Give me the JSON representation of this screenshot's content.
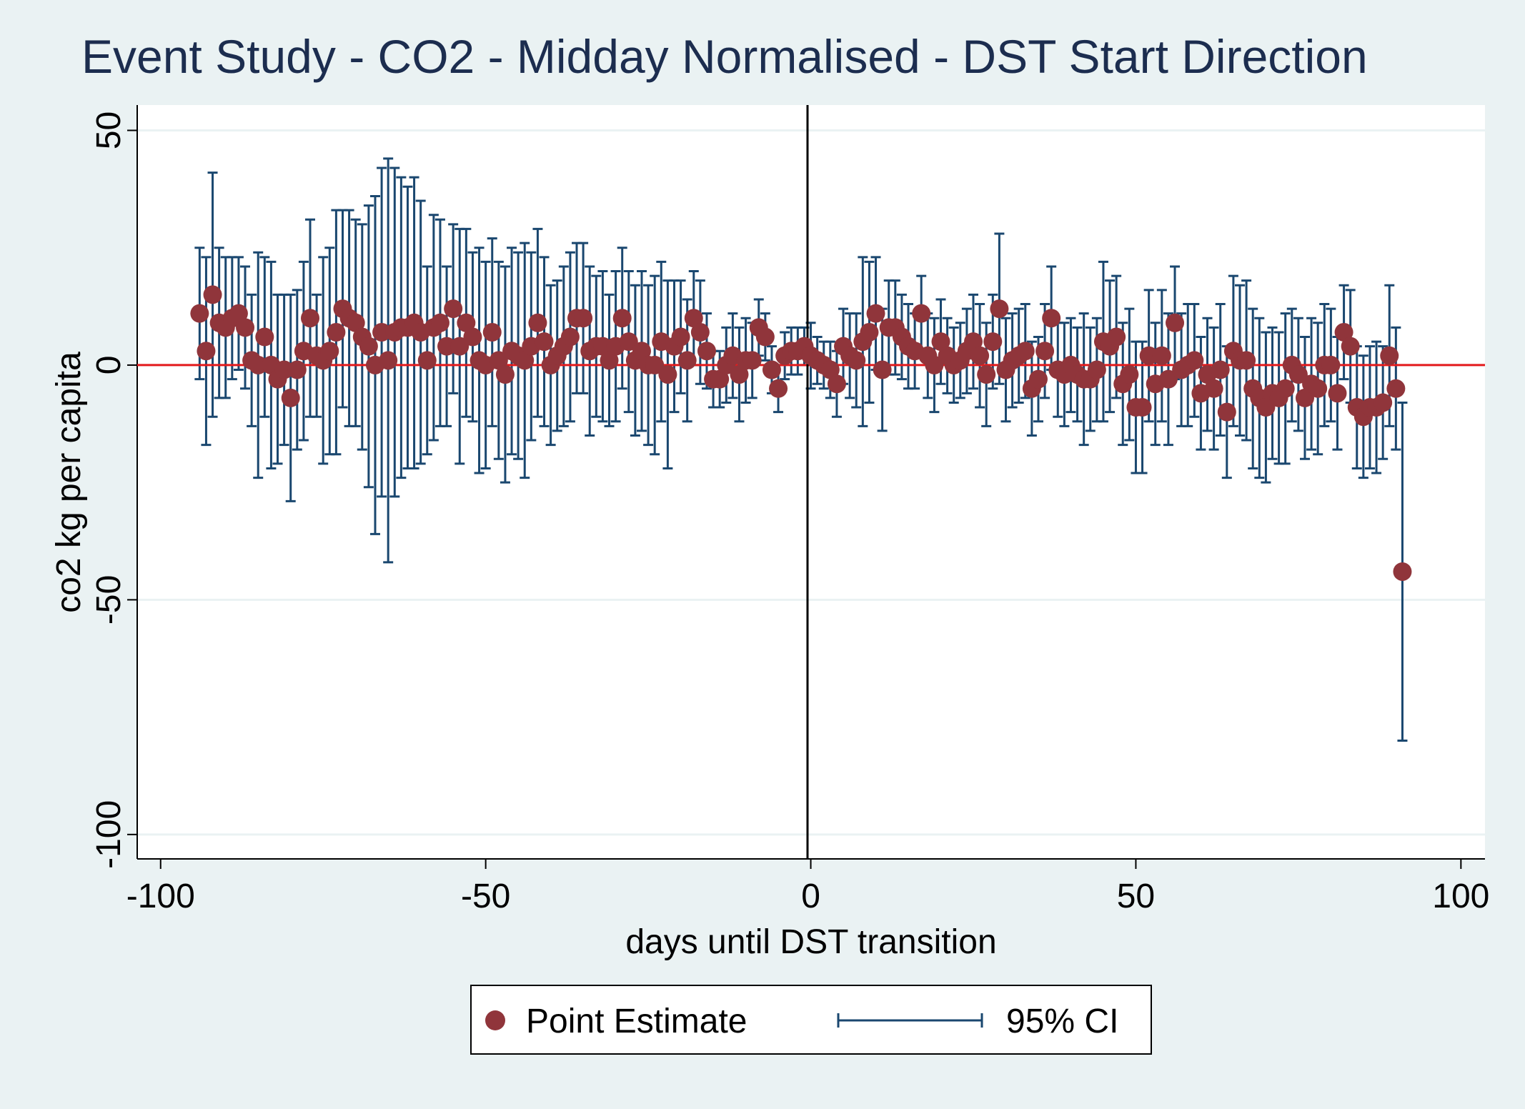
{
  "chart_data": {
    "type": "errorbar",
    "title": "Event Study - CO2 - Midday Normalised - DST Start Direction",
    "xlabel": "days until DST transition",
    "ylabel": "co2 kg per capita",
    "x": [
      -94,
      -93,
      -92,
      -91,
      -90,
      -89,
      -88,
      -87,
      -86,
      -85,
      -84,
      -83,
      -82,
      -81,
      -80,
      -79,
      -78,
      -77,
      -76,
      -75,
      -74,
      -73,
      -72,
      -71,
      -70,
      -69,
      -68,
      -67,
      -66,
      -65,
      -64,
      -63,
      -62,
      -61,
      -60,
      -59,
      -58,
      -57,
      -56,
      -55,
      -54,
      -53,
      -52,
      -51,
      -50,
      -49,
      -48,
      -47,
      -46,
      -45,
      -44,
      -43,
      -42,
      -41,
      -40,
      -39,
      -38,
      -37,
      -36,
      -35,
      -34,
      -33,
      -32,
      -31,
      -30,
      -29,
      -28,
      -27,
      -26,
      -25,
      -24,
      -23,
      -22,
      -21,
      -20,
      -19,
      -18,
      -17,
      -16,
      -15,
      -14,
      -13,
      -12,
      -11,
      -10,
      -9,
      -8,
      -7,
      -6,
      -5,
      -4,
      -3,
      -2,
      -1,
      0,
      1,
      2,
      3,
      4,
      5,
      6,
      7,
      8,
      9,
      10,
      11,
      12,
      13,
      14,
      15,
      16,
      17,
      18,
      19,
      20,
      21,
      22,
      23,
      24,
      25,
      26,
      27,
      28,
      29,
      30,
      31,
      32,
      33,
      34,
      35,
      36,
      37,
      38,
      39,
      40,
      41,
      42,
      43,
      44,
      45,
      46,
      47,
      48,
      49,
      50,
      51,
      52,
      53,
      54,
      55,
      56,
      57,
      58,
      59,
      60,
      61,
      62,
      63,
      64,
      65,
      66,
      67,
      68,
      69,
      70,
      71,
      72,
      73,
      74,
      75,
      76,
      77,
      78,
      79,
      80,
      81,
      82,
      83,
      84,
      85,
      86,
      87,
      88,
      89,
      90,
      91
    ],
    "series": [
      {
        "name": "Point Estimate",
        "color": "#90353b",
        "values": [
          11,
          3,
          15,
          9,
          8,
          10,
          11,
          8,
          1,
          0,
          6,
          0,
          -3,
          -1,
          -7,
          -1,
          3,
          10,
          2,
          1,
          3,
          7,
          12,
          10,
          9,
          6,
          4,
          0,
          7,
          1,
          7,
          8,
          8,
          9,
          7,
          1,
          8,
          9,
          4,
          12,
          4,
          9,
          6,
          1,
          0,
          7,
          1,
          -2,
          3,
          2,
          1,
          4,
          9,
          5,
          0,
          2,
          4,
          6,
          10,
          10,
          3,
          4,
          4,
          1,
          4,
          10,
          5,
          1,
          3,
          0,
          0,
          5,
          -2,
          4,
          6,
          1,
          10,
          7,
          3,
          -3,
          -3,
          0,
          2,
          -2,
          1,
          1,
          8,
          6,
          -1,
          -5,
          2,
          3,
          3,
          4,
          2,
          1,
          0,
          -1,
          -4,
          4,
          2,
          1,
          5,
          7,
          11,
          -1,
          8,
          8,
          6,
          4,
          3,
          11,
          2,
          0,
          5,
          2,
          0,
          1,
          3,
          5,
          2,
          -2,
          5,
          12,
          -1,
          1,
          2,
          3,
          -5,
          -3,
          3,
          10,
          -1,
          -2,
          0,
          -2,
          -3,
          -3,
          -1,
          5,
          4,
          6,
          -4,
          -2,
          -9,
          -9,
          2,
          -4,
          2,
          -3,
          9,
          -1,
          0,
          1,
          -6,
          -2,
          -5,
          -1,
          -10,
          3,
          1,
          1,
          -5,
          -7,
          -9,
          -6,
          -7,
          -5,
          0,
          -2,
          -7,
          -4,
          -5,
          0,
          0,
          -6,
          7,
          4,
          -9,
          -11,
          -9,
          -9,
          -8,
          2,
          -5,
          -44
        ]
      },
      {
        "name": "95% CI",
        "color": "#1a476f",
        "values": [
          14,
          20,
          26,
          16,
          15,
          13,
          12,
          13,
          14,
          24,
          17,
          22,
          18,
          16,
          22,
          17,
          19,
          21,
          13,
          22,
          22,
          26,
          21,
          23,
          22,
          24,
          30,
          36,
          35,
          43,
          35,
          32,
          30,
          31,
          28,
          20,
          24,
          22,
          17,
          18,
          25,
          20,
          18,
          24,
          22,
          20,
          21,
          23,
          22,
          22,
          25,
          20,
          20,
          18,
          17,
          16,
          17,
          18,
          16,
          16,
          18,
          15,
          16,
          14,
          16,
          15,
          15,
          16,
          17,
          17,
          19,
          17,
          20,
          14,
          12,
          13,
          10,
          11,
          8,
          6,
          6,
          8,
          9,
          10,
          9,
          8,
          6,
          5,
          5,
          5,
          5,
          5,
          5,
          4,
          7,
          5,
          5,
          6,
          7,
          8,
          9,
          10,
          18,
          15,
          12,
          13,
          10,
          10,
          9,
          9,
          8,
          8,
          9,
          10,
          9,
          8,
          8,
          8,
          9,
          10,
          11,
          11,
          10,
          16,
          11,
          10,
          10,
          10,
          10,
          9,
          10,
          11,
          10,
          11,
          10,
          10,
          14,
          11,
          11,
          17,
          14,
          13,
          13,
          14,
          14,
          14,
          14,
          13,
          14,
          14,
          12,
          12,
          13,
          12,
          12,
          12,
          13,
          14,
          14,
          16,
          16,
          17,
          17,
          17,
          16,
          14,
          14,
          16,
          12,
          12,
          13,
          14,
          14,
          13,
          12,
          12,
          10,
          12,
          13,
          13,
          13,
          14,
          12,
          15,
          13,
          36
        ]
      }
    ],
    "xlim": [
      -103.6,
      103.7
    ],
    "ylim": [
      -105.2,
      55.4
    ],
    "xticks": [
      -100,
      -50,
      0,
      50,
      100
    ],
    "yticks": [
      -100,
      -50,
      0,
      50
    ],
    "yline": {
      "value": 0,
      "color": "#e41a1c"
    },
    "xline": {
      "value": -0.5,
      "color": "#000000"
    },
    "grid": true
  }
}
